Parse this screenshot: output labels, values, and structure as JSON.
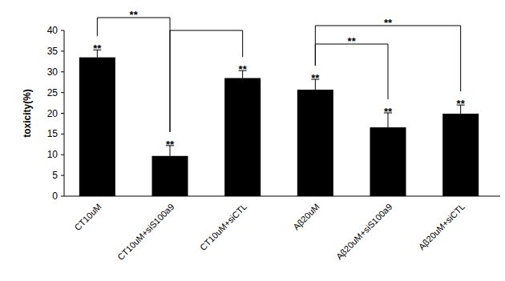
{
  "chart_data": {
    "type": "bar",
    "y_label": "toxicity(%)",
    "categories": [
      "CT10uM",
      "CT10uM+siS100a9",
      "CT10uM+siCTL",
      "Aβ20uM",
      "Aβ20uM+siS100a9",
      "Aβ20uM+siCTL"
    ],
    "values": [
      33.5,
      9.7,
      28.5,
      25.7,
      16.6,
      19.9
    ],
    "errors": [
      1.8,
      2.5,
      1.8,
      2.5,
      3.5,
      2.1
    ],
    "color": "#000000",
    "ylim": [
      0,
      40
    ],
    "yticks": [
      0,
      5,
      10,
      15,
      20,
      25,
      30,
      35,
      40
    ],
    "grid": false,
    "bar_annotations": [
      "**",
      "**",
      "**",
      "**",
      "**",
      "**"
    ],
    "comparisons": [
      {
        "from": 0,
        "to": 1,
        "label": "**"
      },
      {
        "from": 1,
        "to": 2
      },
      {
        "from": 3,
        "to": 4,
        "label": "**"
      },
      {
        "from": 3,
        "to": 5,
        "label": "**"
      }
    ]
  }
}
